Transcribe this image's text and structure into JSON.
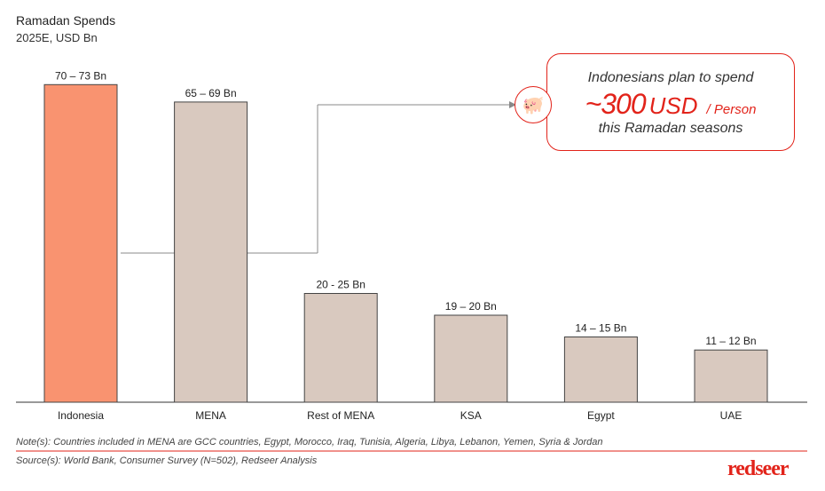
{
  "chart_data": {
    "type": "bar",
    "title": "Ramadan Spends",
    "subtitle": "2025E, USD Bn",
    "categories": [
      "Indonesia",
      "MENA",
      "Rest of MENA",
      "KSA",
      "Egypt",
      "UAE"
    ],
    "ranges": [
      [
        70,
        73
      ],
      [
        65,
        69
      ],
      [
        20,
        25
      ],
      [
        19,
        20
      ],
      [
        14,
        15
      ],
      [
        11,
        12
      ]
    ],
    "data_labels": [
      "70 – 73 Bn",
      "65 – 69 Bn",
      "20 - 25 Bn",
      "19 – 20 Bn",
      "14 – 15 Bn",
      "11 – 12 Bn"
    ],
    "colors": [
      "#f99370",
      "#d9c9bf",
      "#d9c9bf",
      "#d9c9bf",
      "#d9c9bf",
      "#d9c9bf"
    ],
    "highlight_color": "#f99370",
    "bar_color": "#d9c9bf",
    "ylim": [
      0,
      74
    ],
    "grid": false
  },
  "callout": {
    "line1": "Indonesians plan to spend",
    "amount": "~300",
    "currency": "USD",
    "per": "/ Person",
    "line3": "this Ramadan seasons",
    "icon": "piggy-bank-icon"
  },
  "notes": "Note(s): Countries included in MENA are GCC countries, Egypt, Morocco, Iraq, Tunisia, Algeria, Libya, Lebanon, Yemen, Syria & Jordan",
  "source": "Source(s): World Bank, Consumer Survey (N=502), Redseer Analysis",
  "logo": "redseer",
  "accent": "#e2231a"
}
